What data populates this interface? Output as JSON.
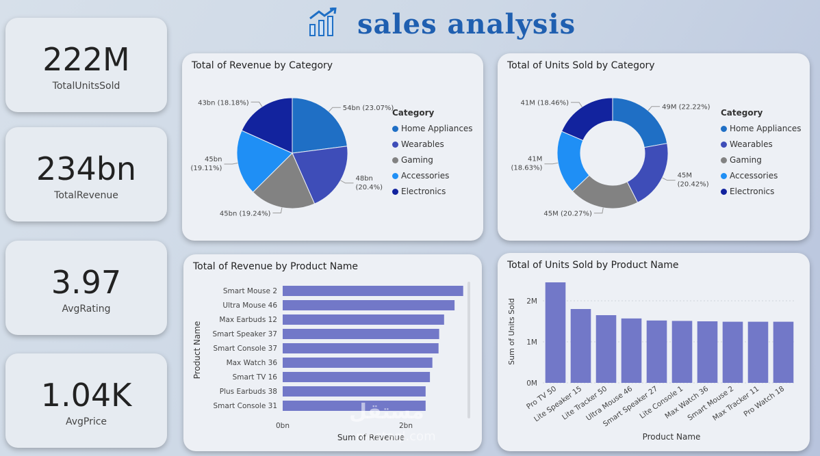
{
  "header": {
    "title": "sales analysis",
    "icon": "bar-chart-growth-icon"
  },
  "kpis": [
    {
      "value": "222M",
      "label": "TotalUnitsSold"
    },
    {
      "value": "234bn",
      "label": "TotalRevenue"
    },
    {
      "value": "3.97",
      "label": "AvgRating"
    },
    {
      "value": "1.04K",
      "label": "AvgPrice"
    }
  ],
  "colors": {
    "Home Appliances": "#1f6fc5",
    "Wearables": "#3e4db8",
    "Gaming": "#828282",
    "Accessories": "#1f8ff5",
    "Electronics": "#12239e",
    "bar": "#7278c8"
  },
  "watermark": {
    "text": "مستقل",
    "site": "mostaql.com"
  },
  "chart_data": [
    {
      "type": "pie",
      "title": "Total of Revenue by Category",
      "legend_title": "Category",
      "legend_position": "right",
      "categories": [
        "Home Appliances",
        "Wearables",
        "Gaming",
        "Accessories",
        "Electronics"
      ],
      "values": [
        54,
        48,
        45,
        45,
        43
      ],
      "labels": [
        "54bn (23.07%)",
        "48bn (20.4%)",
        "45bn (19.24%)",
        "45bn (19.11%)",
        "43bn (18.18%)"
      ]
    },
    {
      "type": "pie",
      "title": "Total of Units Sold by Category",
      "legend_title": "Category",
      "legend_position": "right",
      "donut": true,
      "categories": [
        "Home Appliances",
        "Wearables",
        "Gaming",
        "Accessories",
        "Electronics"
      ],
      "values": [
        49,
        45,
        45,
        41,
        41
      ],
      "labels": [
        "49M (22.22%)",
        "45M (20.42%)",
        "45M (20.27%)",
        "41M (18.63%)",
        "41M (18.46%)"
      ]
    },
    {
      "type": "bar",
      "orientation": "horizontal",
      "title": "Total of Revenue by Product Name",
      "xlabel": "Sum of Revenue",
      "ylabel": "Product Name",
      "categories": [
        "Smart Mouse 2",
        "Ultra Mouse 46",
        "Max Earbuds 12",
        "Smart Speaker 37",
        "Smart Console 37",
        "Max Watch 36",
        "Smart TV 16",
        "Plus Earbuds 38",
        "Smart Console 31"
      ],
      "values": [
        2.93,
        2.79,
        2.62,
        2.54,
        2.53,
        2.43,
        2.39,
        2.32,
        2.32
      ],
      "unit": "bn",
      "xlim": [
        0,
        3
      ],
      "xticks": [
        "0bn",
        "2bn"
      ]
    },
    {
      "type": "bar",
      "title": "Total of Units Sold by Product Name",
      "xlabel": "Product Name",
      "ylabel": "Sum of Units Sold",
      "categories": [
        "Pro TV 50",
        "Lite Speaker 15",
        "Lite Tracker 50",
        "Ultra Mouse 46",
        "Smart Speaker 27",
        "Lite Console 1",
        "Max Watch 36",
        "Smart Mouse 2",
        "Max Tracker 11",
        "Pro Watch 18"
      ],
      "values": [
        2.45,
        1.8,
        1.65,
        1.57,
        1.52,
        1.51,
        1.5,
        1.49,
        1.49,
        1.49
      ],
      "unit": "M",
      "ylim": [
        0,
        2.5
      ],
      "yticks": [
        "0M",
        "1M",
        "2M"
      ]
    }
  ]
}
